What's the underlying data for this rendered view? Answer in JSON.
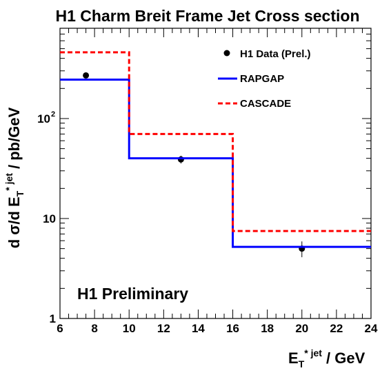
{
  "chart_data": {
    "type": "line",
    "title": "H1 Charm Breit Frame Jet Cross section",
    "annotation": "H1 Preliminary",
    "xlabel": {
      "prefix": "E",
      "sub": "T",
      "sup": "* jet",
      "suffix": " / GeV"
    },
    "ylabel": {
      "prefix": "d σ/d E",
      "sub": "T",
      "sup": "* jet",
      "suffix": " / pb/GeV"
    },
    "xlim": [
      6,
      24
    ],
    "ylim": [
      1,
      800
    ],
    "yscale": "log",
    "x_ticks": [
      "6",
      "8",
      "10",
      "12",
      "14",
      "16",
      "18",
      "20",
      "22",
      "24"
    ],
    "y_ticks": [
      {
        "value": 1,
        "label": "1"
      },
      {
        "value": 10,
        "label": "10"
      },
      {
        "value": 100,
        "label": "10",
        "exp": "2"
      }
    ],
    "legend_position": "top-right",
    "series": [
      {
        "name": "H1 Data (Prel.)",
        "kind": "points",
        "color": "#000000",
        "x": [
          7.5,
          13,
          20
        ],
        "y": [
          270,
          39,
          5.0
        ],
        "yerr": [
          14,
          3.5,
          0.9
        ]
      },
      {
        "name": "RAPGAP",
        "kind": "histogram",
        "color": "#0000ff",
        "bins": [
          6,
          10,
          16,
          24
        ],
        "values": [
          245,
          40,
          5.2
        ]
      },
      {
        "name": "CASCADE",
        "kind": "histogram",
        "color": "#ff0000",
        "dashed": true,
        "bins": [
          6,
          10,
          16,
          24
        ],
        "values": [
          460,
          70,
          7.5
        ]
      }
    ]
  }
}
